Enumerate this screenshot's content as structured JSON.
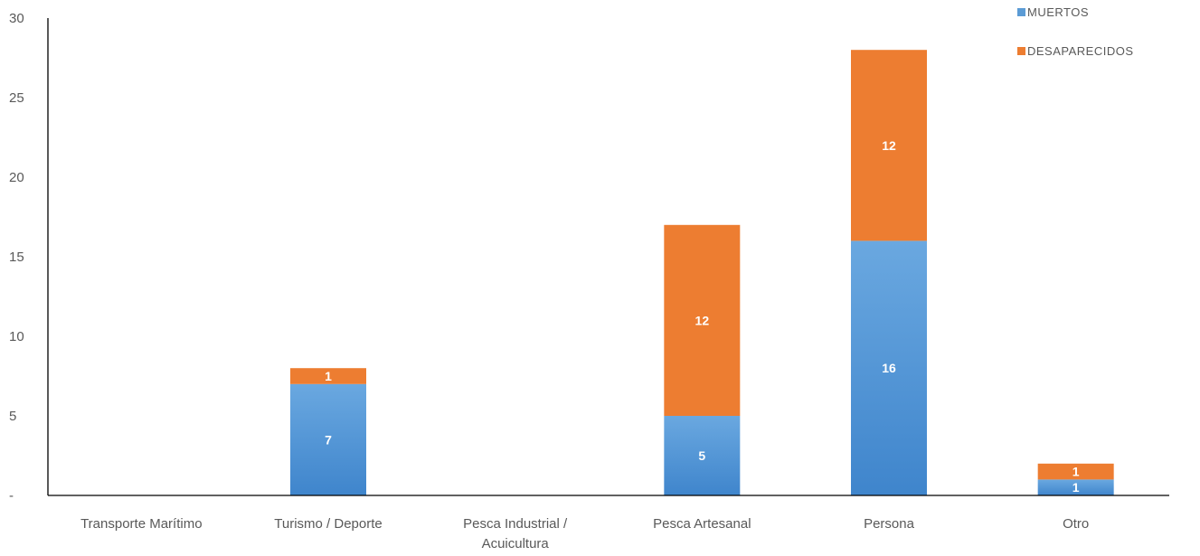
{
  "chart_data": {
    "type": "bar",
    "stacked": true,
    "categories": [
      "Transporte Marítimo",
      "Turismo / Deporte",
      "Pesca Industrial / Acuicultura",
      "Pesca Artesanal",
      "Persona",
      "Otro"
    ],
    "category_lines": [
      [
        "Transporte Marítimo"
      ],
      [
        "Turismo / Deporte"
      ],
      [
        "Pesca Industrial /",
        "Acuicultura"
      ],
      [
        "Pesca Artesanal"
      ],
      [
        "Persona"
      ],
      [
        "Otro"
      ]
    ],
    "series": [
      {
        "name": "MUERTOS",
        "values": [
          0,
          7,
          0,
          5,
          16,
          1
        ],
        "labels": [
          "-",
          "7",
          "-",
          "5",
          "16",
          "1"
        ],
        "color": "#5B9BD5"
      },
      {
        "name": "DESAPARECIDOS",
        "values": [
          0,
          1,
          0,
          12,
          12,
          1
        ],
        "labels": [
          "",
          "1",
          "",
          "12",
          "12",
          "1"
        ],
        "color": "#ED7D31"
      }
    ],
    "ylim": [
      0,
      30
    ],
    "yticks": [
      0,
      5,
      10,
      15,
      20,
      25,
      30
    ],
    "ytick_labels": [
      "-",
      "5",
      "10",
      "15",
      "20",
      "25",
      "30"
    ],
    "legend_position": "top-right",
    "grid": false,
    "title": "",
    "xlabel": "",
    "ylabel": ""
  }
}
